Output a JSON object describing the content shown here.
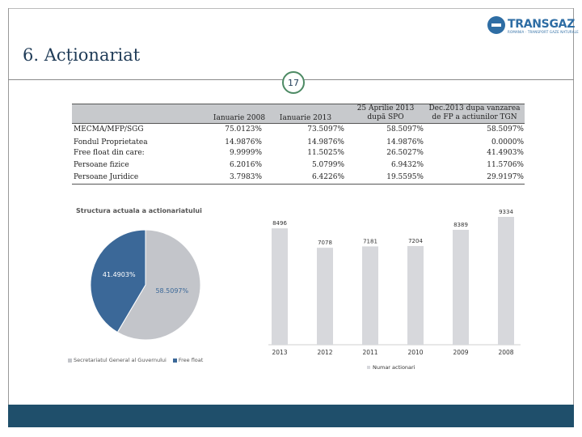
{
  "slide": {
    "title": "6. Acționariat",
    "page_number": "17",
    "logo_text": "TRANSGAZ",
    "logo_subtext": "ROMANIA · TRANSPORT GAZE NATURALE"
  },
  "colors": {
    "title": "#1f3b57",
    "pie_gray": "#c3c5ca",
    "pie_blue": "#3b6898",
    "bar": "#d7d8dc",
    "footer": "#1f4f6b",
    "badge_border": "#4d8a64"
  },
  "table": {
    "columns": [
      "Ianuarie 2008",
      "Ianuarie 2013",
      "25 Aprilie 2013 după SPO",
      "Dec.2013 dupa vanzarea de FP a actiunilor TGN"
    ],
    "rows": [
      {
        "label": "MECMA/MFP/SGG",
        "values": [
          "75.0123%",
          "73.5097%",
          "58.5097%",
          "58.5097%"
        ]
      },
      {
        "label": "Fondul Proprietatea",
        "values": [
          "14.9876%",
          "14.9876%",
          "14.9876%",
          "0.0000%"
        ]
      },
      {
        "label": "Free float din care:",
        "values": [
          "9.9999%",
          "11.5025%",
          "26.5027%",
          "41.4903%"
        ]
      },
      {
        "label": "Persoane fizice",
        "values": [
          "6.2016%",
          "5.0799%",
          "6.9432%",
          "11.5706%"
        ]
      },
      {
        "label": "Persoane Juridice",
        "values": [
          "3.7983%",
          "6.4226%",
          "19.5595%",
          "29.9197%"
        ]
      }
    ]
  },
  "pie_chart": {
    "title": "Structura actuala a actionariatului",
    "chart_data": {
      "type": "pie",
      "title": "Structura actuala a actionariatului",
      "slices": [
        {
          "name": "Secretariatul General al Guvernului",
          "value": 58.5097,
          "label": "58.5097%",
          "color": "#c3c5ca"
        },
        {
          "name": "Free float",
          "value": 41.4903,
          "label": "41.4903%",
          "color": "#3b6898"
        }
      ],
      "legend": [
        "Secretariatul General al Guvernului",
        "Free float"
      ]
    }
  },
  "bar_chart": {
    "chart_data": {
      "type": "bar",
      "categories": [
        "2013",
        "2012",
        "2011",
        "2010",
        "2009",
        "2008"
      ],
      "series": [
        {
          "name": "Numar actionari",
          "values": [
            8496,
            7078,
            7181,
            7204,
            8389,
            9334
          ]
        }
      ],
      "value_labels": [
        "8496",
        "7078",
        "7181",
        "7204",
        "8389",
        "9334"
      ],
      "ylim": [
        0,
        9334
      ],
      "legend": "Numar actionari",
      "legend_position": "bottom"
    }
  }
}
